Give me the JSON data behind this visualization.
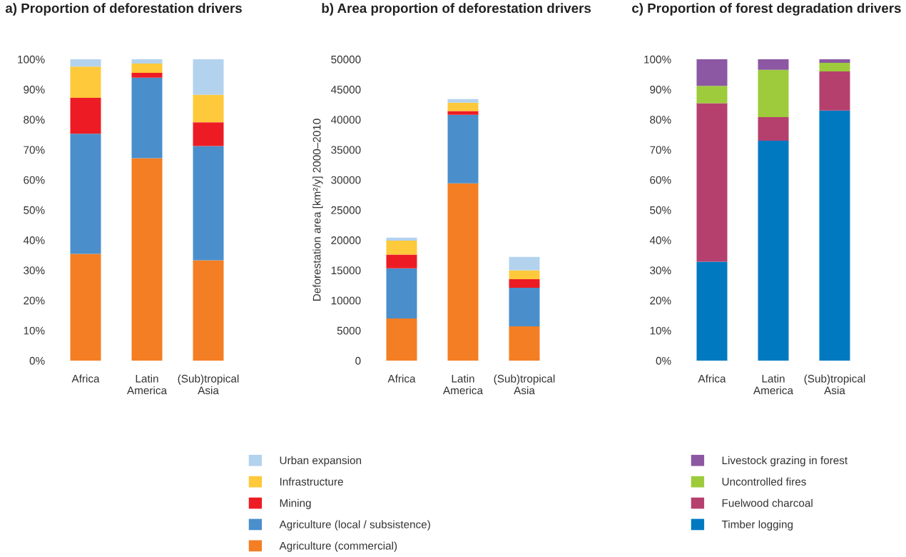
{
  "chart_data": [
    {
      "type": "bar",
      "title": "a) Proportion of deforestation drivers",
      "categories": [
        "Africa",
        "Latin\nAmerica",
        "(Sub)tropical\nAsia"
      ],
      "stacked": true,
      "legend": "bottom right",
      "grid": false,
      "ylim": [
        0,
        100
      ],
      "yticks": [
        {
          "value": 0,
          "label": "0%"
        },
        {
          "value": 10,
          "label": "10%"
        },
        {
          "value": 20,
          "label": "20%"
        },
        {
          "value": 30,
          "label": "30%"
        },
        {
          "value": 40,
          "label": "40%"
        },
        {
          "value": 50,
          "label": "50%"
        },
        {
          "value": 60,
          "label": "60%"
        },
        {
          "value": 70,
          "label": "70%"
        },
        {
          "value": 80,
          "label": "80%"
        },
        {
          "value": 90,
          "label": "90%"
        },
        {
          "value": 100,
          "label": "100%"
        }
      ],
      "series": [
        {
          "name": "Agriculture (commercial)",
          "color": "#f47e23",
          "values": [
            35.4,
            67.2,
            33.3
          ]
        },
        {
          "name": "Agriculture (local / subsistence)",
          "color": "#4a8fcc",
          "values": [
            39.9,
            26.7,
            37.9
          ]
        },
        {
          "name": "Mining",
          "color": "#ed1c24",
          "values": [
            11.9,
            1.6,
            7.9
          ]
        },
        {
          "name": "Infrastructure",
          "color": "#fec93a",
          "values": [
            10.4,
            3.1,
            9.1
          ]
        },
        {
          "name": "Urban expansion",
          "color": "#b3d2ee",
          "values": [
            2.4,
            1.4,
            11.8
          ]
        }
      ]
    },
    {
      "type": "bar",
      "title": "b) Area proportion of deforestation drivers",
      "ylabel": "Deforestation area [km²/y] 2000–2010",
      "categories": [
        "Africa",
        "Latin\nAmerica",
        "(Sub)tropical\nAsia"
      ],
      "stacked": true,
      "grid": false,
      "ylim": [
        0,
        50000
      ],
      "yticks": [
        0,
        5000,
        10000,
        15000,
        20000,
        25000,
        30000,
        35000,
        40000,
        45000,
        50000
      ],
      "series": [
        {
          "color": "#f47e23",
          "values": [
            7000,
            29400,
            5700
          ]
        },
        {
          "color": "#4a8fcc",
          "values": [
            8300,
            11400,
            6400
          ]
        },
        {
          "color": "#ed1c24",
          "values": [
            2300,
            600,
            1400
          ]
        },
        {
          "color": "#fec93a",
          "values": [
            2300,
            1400,
            1500
          ]
        },
        {
          "color": "#b3d2ee",
          "values": [
            500,
            600,
            2200
          ]
        }
      ]
    },
    {
      "type": "bar",
      "title": "c) Proportion of forest degradation drivers",
      "categories": [
        "Africa",
        "Latin\nAmerica",
        "(Sub)tropical\nAsia"
      ],
      "stacked": true,
      "legend": "bottom left",
      "grid": false,
      "ylim": [
        0,
        100
      ],
      "yticks": [
        {
          "value": 0,
          "label": "0%"
        },
        {
          "value": 10,
          "label": "10%"
        },
        {
          "value": 20,
          "label": "20%"
        },
        {
          "value": 30,
          "label": "30%"
        },
        {
          "value": 40,
          "label": "40%"
        },
        {
          "value": 50,
          "label": "50%"
        },
        {
          "value": 60,
          "label": "60%"
        },
        {
          "value": 70,
          "label": "70%"
        },
        {
          "value": 80,
          "label": "80%"
        },
        {
          "value": 90,
          "label": "90%"
        },
        {
          "value": 100,
          "label": "100%"
        }
      ],
      "series": [
        {
          "name": "Timber logging",
          "color": "#0079c1",
          "values": [
            32.8,
            73.0,
            83.0
          ]
        },
        {
          "name": "Fuelwood charcoal",
          "color": "#b5406e",
          "values": [
            52.6,
            7.8,
            13.0
          ]
        },
        {
          "name": "Uncontrolled fires",
          "color": "#9dcb3b",
          "values": [
            5.8,
            15.7,
            2.8
          ]
        },
        {
          "name": "Livestock grazing in forest",
          "color": "#8c57a3",
          "values": [
            8.8,
            3.5,
            1.2
          ]
        }
      ]
    }
  ]
}
